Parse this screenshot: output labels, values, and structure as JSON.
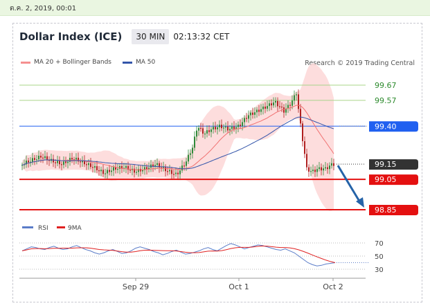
{
  "topbar": {
    "date": "ต.ค. 2, 2019, 00:01"
  },
  "header": {
    "title": "Dollar Index (ICE)",
    "timeframe": "30 MIN",
    "time": "02:13:32 CET"
  },
  "legend": {
    "ma20": "MA 20 + Bollinger Bands",
    "ma50": "MA 50"
  },
  "credit": "Research © 2019 Trading Central",
  "colors": {
    "ma20": "#f07070",
    "ma50": "#3355aa",
    "bands": "#fcd5d5",
    "up": "#2f8a3a",
    "down": "#b02020",
    "support": "#e41010",
    "pivot": "#2060f0",
    "current": "#333333",
    "target_arrow": "#2563a8",
    "resistance": "#a8d48a",
    "rsi": "#5a7cc8",
    "rsi_ma": "#e02020"
  },
  "chart_data": {
    "type": "candlestick",
    "x_ticks": [
      "Sep 29",
      "Oct 1",
      "Oct 2"
    ],
    "levels": [
      {
        "value": "99.67",
        "kind": "resistance"
      },
      {
        "value": "99.57",
        "kind": "resistance"
      },
      {
        "value": "99.40",
        "kind": "pivot"
      },
      {
        "value": "99.15",
        "kind": "current"
      },
      {
        "value": "99.05",
        "kind": "support"
      },
      {
        "value": "98.85",
        "kind": "support"
      }
    ],
    "ylim": [
      98.85,
      99.7
    ],
    "arrow": {
      "from": 99.15,
      "to": 98.85,
      "direction": "down"
    },
    "rsi": {
      "legend": [
        "RSI",
        "9MA"
      ],
      "ticks": [
        "70",
        "50",
        "30"
      ],
      "ylim": [
        25,
        75
      ],
      "values": [
        58,
        61,
        64,
        63,
        61,
        60,
        63,
        65,
        62,
        60,
        61,
        64,
        66,
        63,
        60,
        58,
        55,
        53,
        55,
        58,
        60,
        57,
        54,
        55,
        58,
        62,
        64,
        62,
        60,
        57,
        55,
        52,
        54,
        57,
        59,
        56,
        53,
        54,
        56,
        58,
        61,
        63,
        60,
        58,
        62,
        66,
        69,
        67,
        64,
        61,
        63,
        65,
        67,
        66,
        64,
        62,
        60,
        59,
        61,
        58,
        55,
        50,
        45,
        40,
        37,
        35,
        36,
        38,
        39,
        40
      ]
    }
  }
}
